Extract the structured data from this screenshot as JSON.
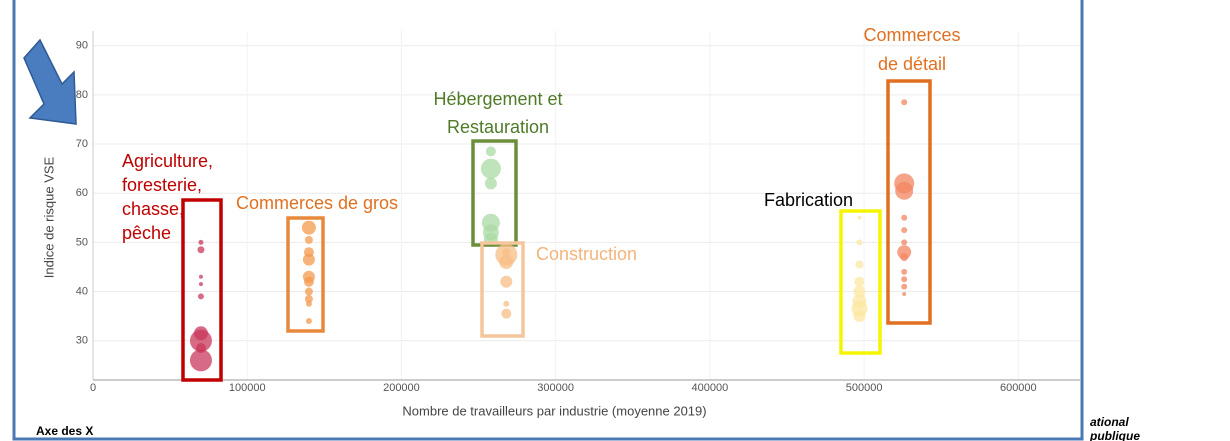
{
  "chart_data": {
    "type": "scatter",
    "x_label": "Nombre de travailleurs par industrie (moyenne 2019)",
    "y_label": "Indice de risque VSE",
    "xlim": [
      0,
      640000
    ],
    "ylim": [
      22,
      93
    ],
    "xticks": [
      0,
      100000,
      200000,
      300000,
      400000,
      500000,
      600000
    ],
    "yticks": [
      30,
      40,
      50,
      60,
      70,
      80,
      90
    ],
    "grid": true,
    "series": [
      {
        "name": [
          "Agriculture,",
          "foresterie,",
          "chasse,",
          "pêche"
        ],
        "color": "#c9385c",
        "box_color": "#c00000",
        "label_color": "#c00000",
        "x": [
          70000,
          70000,
          70000,
          70000,
          70000,
          70000,
          70000,
          70000,
          70000
        ],
        "values": [
          50,
          48.5,
          43,
          41.5,
          39,
          31.5,
          30,
          28.5,
          26
        ],
        "sizes": [
          2.5,
          3.5,
          2,
          2,
          3,
          7,
          11,
          5,
          11
        ]
      },
      {
        "name": [
          "Commerces de gros"
        ],
        "color": "#f39a4e",
        "box_color": "#e8883a",
        "label_color": "#e07020",
        "x": [
          140000,
          140000,
          140000,
          140000,
          140000,
          140000,
          140000,
          140000,
          140000,
          140000
        ],
        "values": [
          53,
          50.5,
          48,
          46.5,
          43,
          42,
          40,
          38.5,
          37.5,
          34
        ],
        "sizes": [
          7,
          4,
          5,
          6,
          6,
          5,
          4,
          4,
          3,
          3
        ]
      },
      {
        "name": [
          "Hébergement et",
          "Restauration"
        ],
        "color": "#a9d9a3",
        "box_color": "#6b8e3a",
        "label_color": "#4f7a28",
        "x": [
          258000,
          258000,
          258000,
          258000,
          258000,
          258000
        ],
        "values": [
          68.5,
          65,
          62,
          54,
          52,
          50.5
        ],
        "sizes": [
          5,
          10,
          6,
          9,
          8,
          7
        ]
      },
      {
        "name": [
          "Construction"
        ],
        "color": "#f8bd84",
        "box_color": "#f5c59c",
        "label_color": "#f3b47c",
        "x": [
          268000,
          268000,
          268000,
          268000,
          268000,
          268000
        ],
        "values": [
          47.5,
          46,
          42,
          37.5,
          35.5,
          48
        ],
        "sizes": [
          11,
          7,
          6,
          3,
          5,
          4
        ]
      },
      {
        "name": [
          "Fabrication"
        ],
        "color": "#fce7a2",
        "box_color": "#f5f500",
        "label_color": "#000000",
        "x": [
          497000,
          497000,
          497000,
          497000,
          497000,
          497000,
          497000,
          497000
        ],
        "values": [
          55,
          50,
          45.5,
          42,
          40,
          38,
          36.5,
          35
        ],
        "sizes": [
          2,
          3,
          4,
          5,
          6,
          7,
          8,
          6
        ]
      },
      {
        "name": [
          "Commerces",
          "de détail"
        ],
        "color": "#f18562",
        "box_color": "#e07020",
        "label_color": "#e07020",
        "x": [
          526000,
          526000,
          526000,
          526000,
          526000,
          526000,
          526000,
          526000,
          526000,
          526000,
          526000,
          526000
        ],
        "values": [
          78.5,
          62,
          60.5,
          55,
          52.5,
          50,
          48,
          47,
          44,
          42.5,
          41,
          39.5
        ],
        "sizes": [
          3,
          10,
          9,
          3,
          3,
          3,
          7,
          4,
          3,
          3,
          3,
          2
        ]
      }
    ]
  },
  "footer": {
    "axis_note": "Axe des X",
    "logo_lines": [
      "ational",
      "publique"
    ]
  }
}
